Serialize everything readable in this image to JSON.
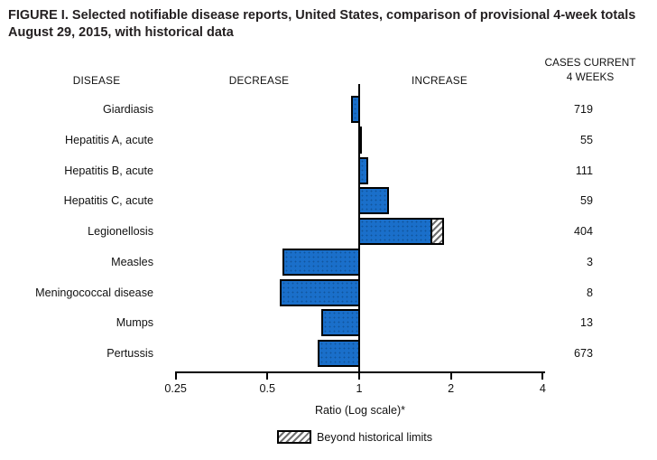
{
  "title": "FIGURE I. Selected notifiable disease reports, United States, comparison of provisional 4-week totals August 29, 2015, with historical data",
  "headers": {
    "disease": "DISEASE",
    "decrease": "DECREASE",
    "increase": "INCREASE",
    "cases_line1": "CASES CURRENT",
    "cases_line2": "4 WEEKS"
  },
  "chart_data": {
    "type": "bar",
    "orientation": "horizontal",
    "scale": "log2",
    "title": "FIGURE I. Selected notifiable disease reports, United States, comparison of provisional 4-week totals August 29, 2015, with historical data",
    "xlabel": "Ratio (Log scale)*",
    "axis_ticks": [
      "0.25",
      "0.5",
      "1",
      "2",
      "4"
    ],
    "axis_range": [
      0.25,
      4
    ],
    "baseline_ratio": 1,
    "rows": [
      {
        "disease": "Giardiasis",
        "ratio": 0.94,
        "cases": "719",
        "beyond_limits": false,
        "beyond_from": null
      },
      {
        "disease": "Hepatitis A, acute",
        "ratio": 1.02,
        "cases": "55",
        "beyond_limits": false,
        "beyond_from": null
      },
      {
        "disease": "Hepatitis B, acute",
        "ratio": 1.07,
        "cases": "111",
        "beyond_limits": false,
        "beyond_from": null
      },
      {
        "disease": "Hepatitis C, acute",
        "ratio": 1.25,
        "cases": "59",
        "beyond_limits": false,
        "beyond_from": null
      },
      {
        "disease": "Legionellosis",
        "ratio": 1.9,
        "cases": "404",
        "beyond_limits": true,
        "beyond_from": 1.71
      },
      {
        "disease": "Measles",
        "ratio": 0.56,
        "cases": "3",
        "beyond_limits": false,
        "beyond_from": null
      },
      {
        "disease": "Meningococcal disease",
        "ratio": 0.55,
        "cases": "8",
        "beyond_limits": false,
        "beyond_from": null
      },
      {
        "disease": "Mumps",
        "ratio": 0.75,
        "cases": "13",
        "beyond_limits": false,
        "beyond_from": null
      },
      {
        "disease": "Pertussis",
        "ratio": 0.73,
        "cases": "673",
        "beyond_limits": false,
        "beyond_from": null
      }
    ],
    "legend": {
      "beyond_label": "Beyond historical limits"
    }
  },
  "colors": {
    "bar_fill": "#1a6fca",
    "bar_dot": "#11559c",
    "bar_border": "#000000",
    "text": "#231f20"
  }
}
